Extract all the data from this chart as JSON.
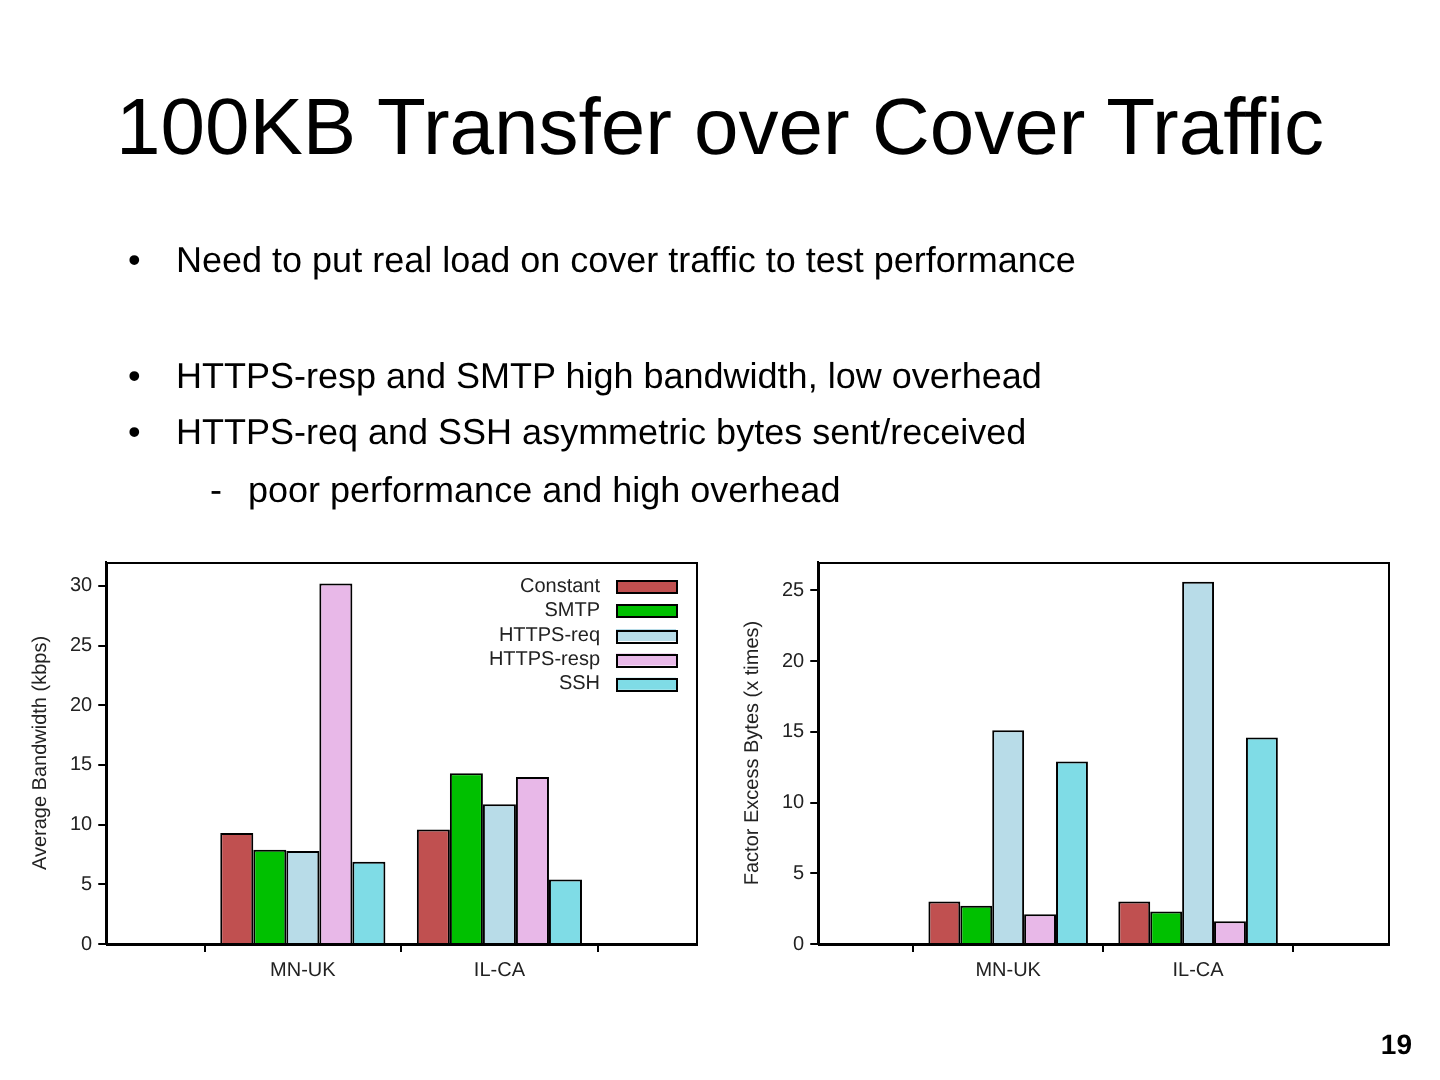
{
  "chart_data": [
    {
      "type": "bar",
      "title": "100KB Transfer over Cover Traffic",
      "ylabel": "Average Bandwidth (kbps)",
      "annotations": [
        "• Need to put real load on cover traffic to test performance",
        "• HTTPS-resp and SMTP high bandwidth, low overhead",
        "• HTTPS-req and SSH asymmetric bytes sent/received",
        "- poor performance and high overhead",
        "19"
      ],
      "categories": [
        "MN-UK",
        "IL-CA"
      ],
      "series": [
        {
          "name": "Constant",
          "color": "#c05050",
          "values": [
            9.3,
            9.6
          ]
        },
        {
          "name": "SMTP",
          "color": "#00c000",
          "values": [
            7.9,
            14.3
          ]
        },
        {
          "name": "HTTPS-req",
          "color": "#b8dce8",
          "values": [
            7.8,
            11.7
          ]
        },
        {
          "name": "HTTPS-resp",
          "color": "#e8b8e8",
          "values": [
            30.2,
            14.0
          ]
        },
        {
          "name": "SSH",
          "color": "#7fdce6",
          "values": [
            6.9,
            5.4
          ]
        }
      ],
      "ylim": [
        0,
        32
      ],
      "yticks": [
        0,
        5,
        10,
        15,
        20,
        25,
        30
      ],
      "legend": "top right"
    },
    {
      "type": "bar",
      "ylabel": "Factor Excess Bytes (x times)",
      "categories": [
        "MN-UK",
        "IL-CA"
      ],
      "series": [
        {
          "color": "#c05050",
          "values": [
            3.0,
            3.0
          ]
        },
        {
          "color": "#00c000",
          "values": [
            2.7,
            2.3
          ]
        },
        {
          "color": "#b8dce8",
          "values": [
            15.1,
            25.6
          ]
        },
        {
          "color": "#e8b8e8",
          "values": [
            2.1,
            1.6
          ]
        },
        {
          "color": "#7fdce6",
          "values": [
            12.9,
            14.6
          ]
        }
      ],
      "ylim": [
        0,
        27
      ],
      "yticks": [
        0,
        5,
        10,
        15,
        20,
        25
      ]
    }
  ]
}
